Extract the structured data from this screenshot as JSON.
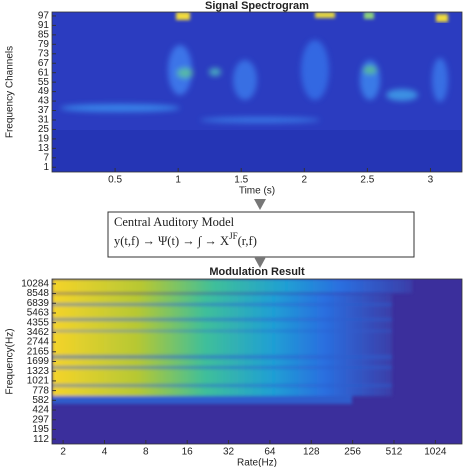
{
  "chart_data": [
    {
      "type": "heatmap",
      "title": "Signal Spectrogram",
      "x_label": "Time (s)",
      "y_label": "Frequency Channels",
      "xlim": [
        0,
        3.25
      ],
      "xticks": [
        0.5,
        1,
        1.5,
        2,
        2.5,
        3
      ],
      "ylim": [
        -2,
        99.5
      ],
      "yticks": [
        1,
        7,
        13,
        19,
        25,
        31,
        37,
        43,
        49,
        55,
        61,
        67,
        73,
        79,
        85,
        91,
        97
      ]
    },
    {
      "type": "heatmap",
      "title": "Modulation Result",
      "x_label": "Rate(Hz)",
      "y_label": "Frequency(Hz)",
      "xscale": "log",
      "xlim": [
        1.66,
        1600
      ],
      "xticks": [
        2,
        4,
        8,
        16,
        32,
        64,
        128,
        256,
        512,
        1024
      ],
      "y_categories": [
        "112",
        "195",
        "297",
        "424",
        "582",
        "778",
        "1021",
        "1323",
        "1699",
        "2165",
        "2744",
        "3462",
        "4355",
        "5463",
        "6839",
        "8548",
        "10284"
      ]
    }
  ],
  "diagram": {
    "title": "Central Auditory Model",
    "formula": "y(t,f) → Ψ(t) → ∫ → X",
    "superscript": "JF",
    "formula_end": "(r,f)"
  }
}
